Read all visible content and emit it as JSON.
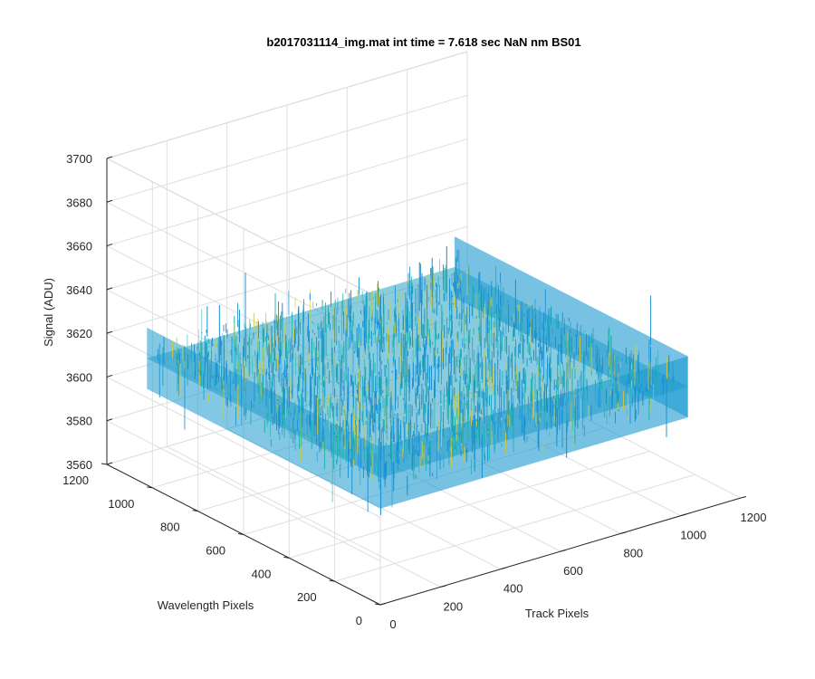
{
  "chart_data": {
    "type": "surface3d",
    "title": "b2017031114_img.mat int time = 7.618 sec  NaN nm BS01",
    "xlabel": "Track Pixels",
    "ylabel": "Wavelength Pixels",
    "zlabel": "Signal (ADU)",
    "xlim": [
      0,
      1200
    ],
    "ylim": [
      0,
      1200
    ],
    "zlim": [
      3560,
      3700
    ],
    "xticks": [
      "0",
      "200",
      "400",
      "600",
      "800",
      "1000",
      "1200"
    ],
    "yticks": [
      "0",
      "200",
      "400",
      "600",
      "800",
      "1000",
      "1200"
    ],
    "zticks": [
      "3560",
      "3580",
      "3600",
      "3620",
      "3640",
      "3660",
      "3680",
      "3700"
    ],
    "surface": {
      "x_range": [
        0,
        1024
      ],
      "y_range": [
        0,
        1024
      ],
      "mean": 3618,
      "noise_range": [
        3565,
        3675
      ]
    },
    "grid": true,
    "colormap": "parula",
    "colors": {
      "surface_low": "#1a8fd0",
      "surface_mid": "#22b2b0",
      "surface_high": "#c8c84a"
    }
  }
}
